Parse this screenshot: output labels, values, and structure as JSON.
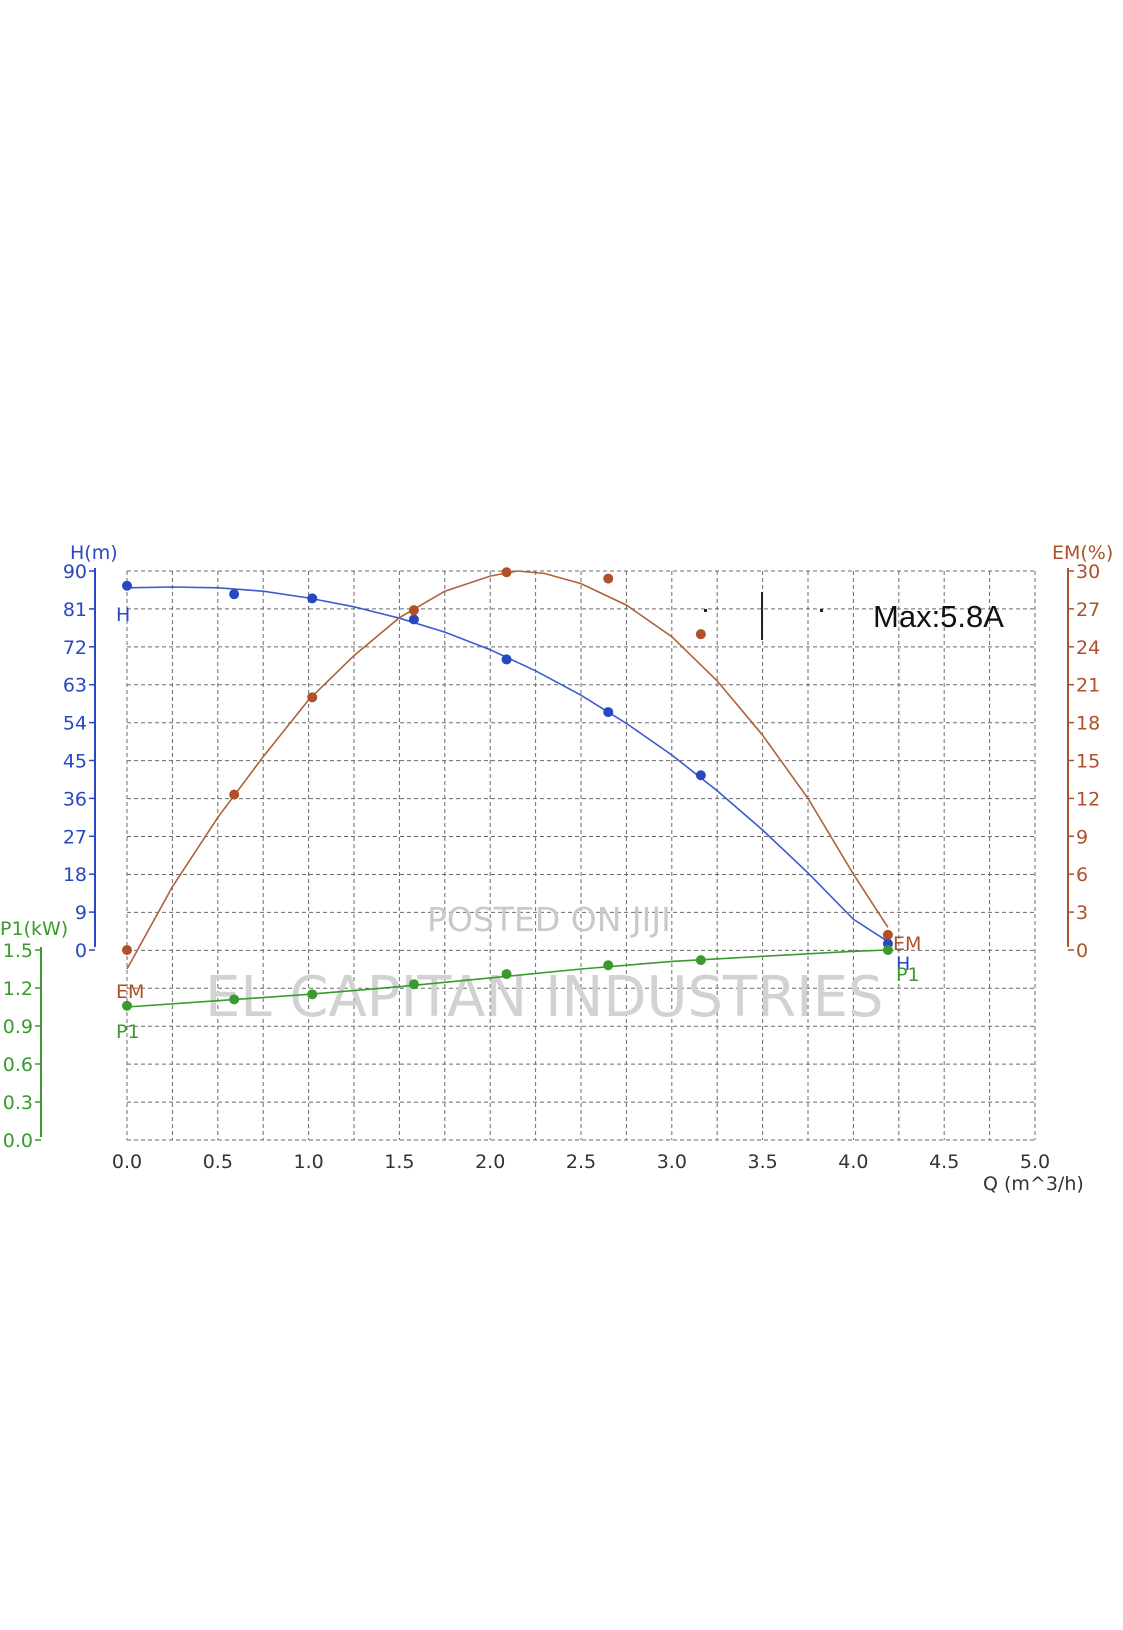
{
  "chart_data": {
    "type": "line",
    "annotation": "Max:5.8A",
    "watermarks": [
      "POSTED ON JIJI",
      "EL CAPITAN INDUSTRIES"
    ],
    "grid": true,
    "x_axis": {
      "label": "Q (m^3/h)",
      "range": [
        0,
        5
      ],
      "ticks": [
        "0.0",
        "0.5",
        "1.0",
        "1.5",
        "2.0",
        "2.5",
        "3.0",
        "3.5",
        "4.0",
        "4.5",
        "5.0"
      ]
    },
    "y_axes": [
      {
        "id": "H",
        "label": "H(m)",
        "position": "left",
        "range": [
          0,
          90
        ],
        "color": "#2a47c3",
        "ticks": [
          "0",
          "9",
          "18",
          "27",
          "36",
          "45",
          "54",
          "63",
          "72",
          "81",
          "90"
        ]
      },
      {
        "id": "P1",
        "label": "P1(kW)",
        "position": "left-lower",
        "range": [
          0,
          1.5
        ],
        "color": "#3a9a2e",
        "ticks": [
          "0.0",
          "0.3",
          "0.6",
          "0.9",
          "1.2",
          "1.5"
        ]
      },
      {
        "id": "EM",
        "label": "EM(%)",
        "position": "right",
        "range": [
          0,
          30
        ],
        "color": "#b0502a",
        "ticks": [
          "0",
          "3",
          "6",
          "9",
          "12",
          "15",
          "18",
          "21",
          "24",
          "27",
          "30"
        ]
      }
    ],
    "series": [
      {
        "name": "H",
        "axis": "H",
        "color": "#2a47c3",
        "points": [
          [
            0.0,
            86.5
          ],
          [
            0.59,
            84.5
          ],
          [
            1.02,
            83.5
          ],
          [
            1.58,
            78.5
          ],
          [
            2.09,
            69.0
          ],
          [
            2.65,
            56.5
          ],
          [
            3.16,
            41.5
          ],
          [
            4.19,
            1.5
          ]
        ],
        "curve": [
          [
            0.0,
            86.0
          ],
          [
            0.25,
            86.2
          ],
          [
            0.5,
            86.0
          ],
          [
            0.75,
            85.2
          ],
          [
            1.0,
            83.6
          ],
          [
            1.25,
            81.5
          ],
          [
            1.5,
            78.8
          ],
          [
            1.75,
            75.5
          ],
          [
            2.0,
            71.3
          ],
          [
            2.25,
            66.3
          ],
          [
            2.5,
            60.5
          ],
          [
            2.75,
            53.8
          ],
          [
            3.0,
            46.3
          ],
          [
            3.25,
            37.8
          ],
          [
            3.5,
            28.5
          ],
          [
            3.75,
            18.3
          ],
          [
            4.0,
            7.3
          ],
          [
            4.19,
            2.0
          ]
        ]
      },
      {
        "name": "EM",
        "axis": "EM",
        "color": "#b0502a",
        "points": [
          [
            0.0,
            0.0
          ],
          [
            0.59,
            12.3
          ],
          [
            1.02,
            20.0
          ],
          [
            1.58,
            26.9
          ],
          [
            2.09,
            29.9
          ],
          [
            2.65,
            29.4
          ],
          [
            3.16,
            25.0
          ],
          [
            4.19,
            1.2
          ]
        ],
        "curve": [
          [
            0.0,
            -1.5
          ],
          [
            0.25,
            5.0
          ],
          [
            0.5,
            10.5
          ],
          [
            0.75,
            15.3
          ],
          [
            1.0,
            19.8
          ],
          [
            1.25,
            23.3
          ],
          [
            1.5,
            26.3
          ],
          [
            1.75,
            28.4
          ],
          [
            2.0,
            29.6
          ],
          [
            2.15,
            30.0
          ],
          [
            2.3,
            29.8
          ],
          [
            2.5,
            29.0
          ],
          [
            2.75,
            27.3
          ],
          [
            3.0,
            24.8
          ],
          [
            3.25,
            21.3
          ],
          [
            3.5,
            17.0
          ],
          [
            3.75,
            12.0
          ],
          [
            4.0,
            6.0
          ],
          [
            4.19,
            1.8
          ]
        ]
      },
      {
        "name": "P1",
        "axis": "P1",
        "color": "#3a9a2e",
        "points": [
          [
            0.0,
            1.06
          ],
          [
            0.59,
            1.11
          ],
          [
            1.02,
            1.15
          ],
          [
            1.58,
            1.23
          ],
          [
            2.09,
            1.31
          ],
          [
            2.65,
            1.38
          ],
          [
            3.16,
            1.42
          ],
          [
            4.19,
            1.5
          ]
        ],
        "curve": [
          [
            0.0,
            1.05
          ],
          [
            0.5,
            1.1
          ],
          [
            1.0,
            1.15
          ],
          [
            1.5,
            1.21
          ],
          [
            2.0,
            1.28
          ],
          [
            2.5,
            1.35
          ],
          [
            3.0,
            1.41
          ],
          [
            3.5,
            1.45
          ],
          [
            4.0,
            1.49
          ],
          [
            4.19,
            1.5
          ]
        ]
      }
    ]
  }
}
